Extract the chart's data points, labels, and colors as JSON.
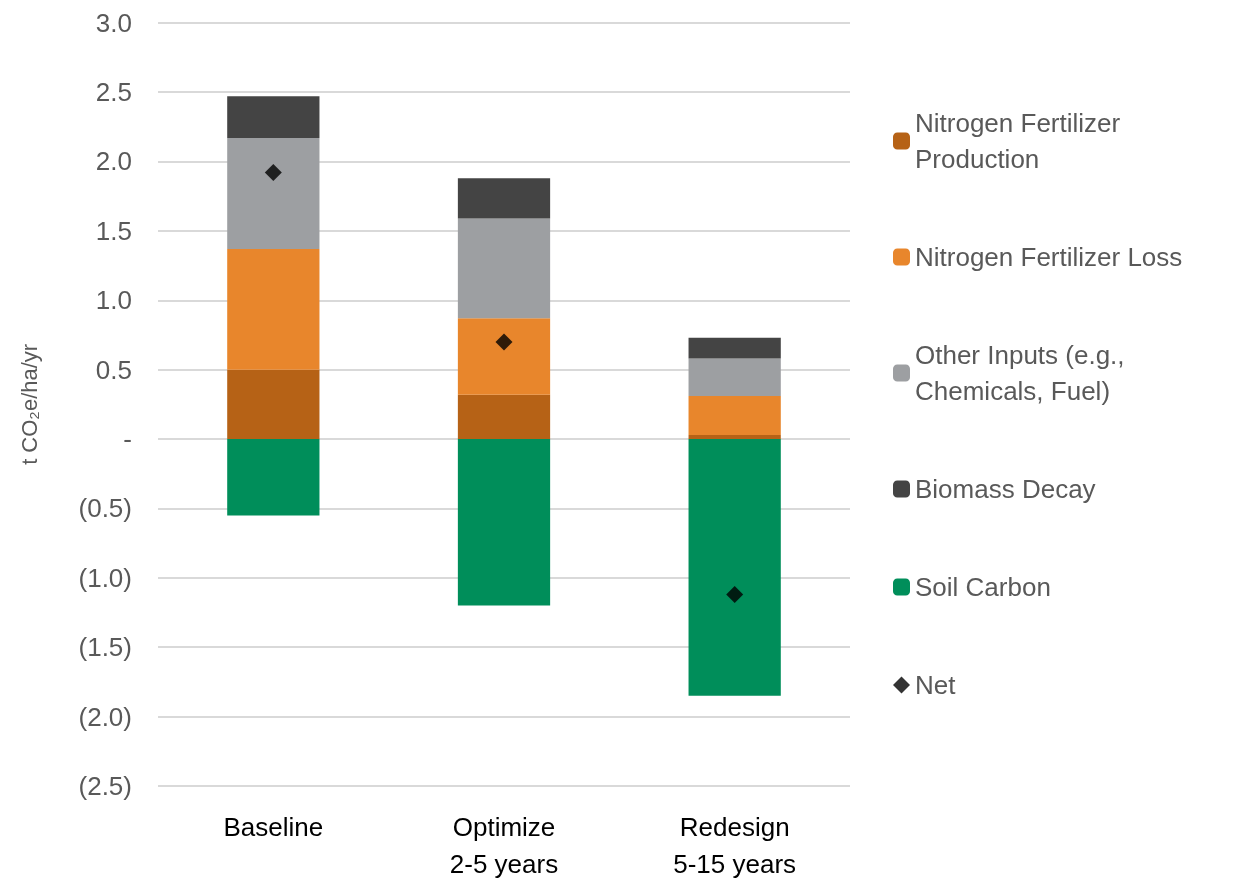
{
  "chart_data": {
    "type": "bar",
    "stacked": true,
    "categories": [
      "Baseline",
      "Optimize\n2-5 years",
      "Redesign\n5-15 years"
    ],
    "ylabel": "t CO₂e/ha/yr",
    "ylim": [
      -2.5,
      3.0
    ],
    "yticks": [
      {
        "value": -2.5,
        "label": "(2.5)"
      },
      {
        "value": -2,
        "label": "(2.0)"
      },
      {
        "value": -1.5,
        "label": "(1.5)"
      },
      {
        "value": -1,
        "label": "(1.0)"
      },
      {
        "value": -0.5,
        "label": "(0.5)"
      },
      {
        "value": 0,
        "label": "-"
      },
      0.5,
      {
        "value": 1,
        "label": "1.0"
      },
      1.5,
      {
        "value": 2,
        "label": "2.0"
      },
      2.5,
      {
        "value": 3,
        "label": "3.0"
      }
    ],
    "grid": "y",
    "legend": "right",
    "series": [
      {
        "name": "Nitrogen Fertilizer Production",
        "color": "#b66216",
        "values": [
          0.5,
          0.32,
          0.03
        ]
      },
      {
        "name": "Nitrogen Fertilizer Loss",
        "color": "#e8862c",
        "values": [
          0.87,
          0.55,
          0.28
        ]
      },
      {
        "name": "Other Inputs (e.g., Chemicals, Fuel)",
        "color": "#9d9fa2",
        "values": [
          0.8,
          0.72,
          0.27
        ]
      },
      {
        "name": "Biomass Decay",
        "color": "#444444",
        "values": [
          0.3,
          0.29,
          0.15
        ]
      },
      {
        "name": "Soil Carbon",
        "color": "#008e5a",
        "values": [
          -0.55,
          -1.2,
          -1.85
        ]
      },
      {
        "name": "Net",
        "type": "scatter",
        "marker": "diamond",
        "color": "#000000",
        "x": [
          "Baseline",
          "Optimize\n2-5 years",
          "Redesign\n5-15 years"
        ],
        "values": [
          1.92,
          0.7,
          -1.12
        ]
      }
    ]
  }
}
